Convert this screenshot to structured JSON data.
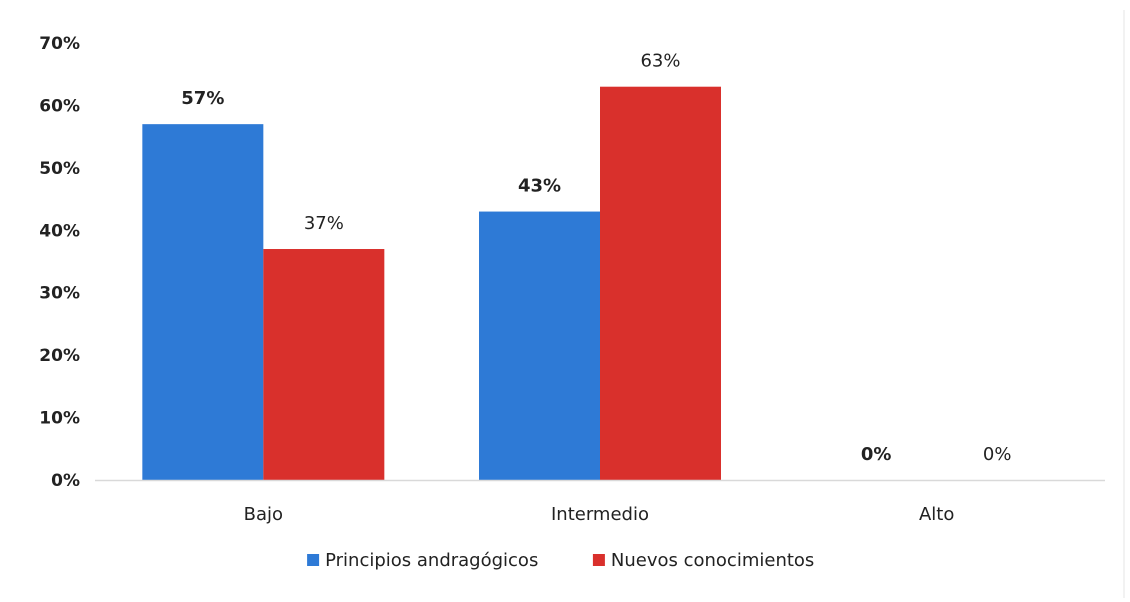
{
  "chart_data": {
    "type": "bar",
    "categories": [
      "Bajo",
      "Intermedio",
      "Alto"
    ],
    "series": [
      {
        "name": "Principios andragógicos",
        "values": [
          57,
          43,
          0
        ],
        "labels": [
          "57%",
          "43%",
          "0%"
        ],
        "color": "#2E7AD6"
      },
      {
        "name": "Nuevos conocimientos",
        "values": [
          37,
          63,
          0
        ],
        "labels": [
          "37%",
          "63%",
          "0%"
        ],
        "color": "#D9302C"
      }
    ],
    "ylim": [
      0,
      70
    ],
    "yticks": [
      {
        "value": 0,
        "label": "0%"
      },
      {
        "value": 10,
        "label": "10%"
      },
      {
        "value": 20,
        "label": "20%"
      },
      {
        "value": 30,
        "label": "30%"
      },
      {
        "value": 40,
        "label": "40%"
      },
      {
        "value": 50,
        "label": "50%"
      },
      {
        "value": 60,
        "label": "60%"
      },
      {
        "value": 70,
        "label": "70%"
      }
    ],
    "grid": false,
    "legend_position": "bottom"
  }
}
